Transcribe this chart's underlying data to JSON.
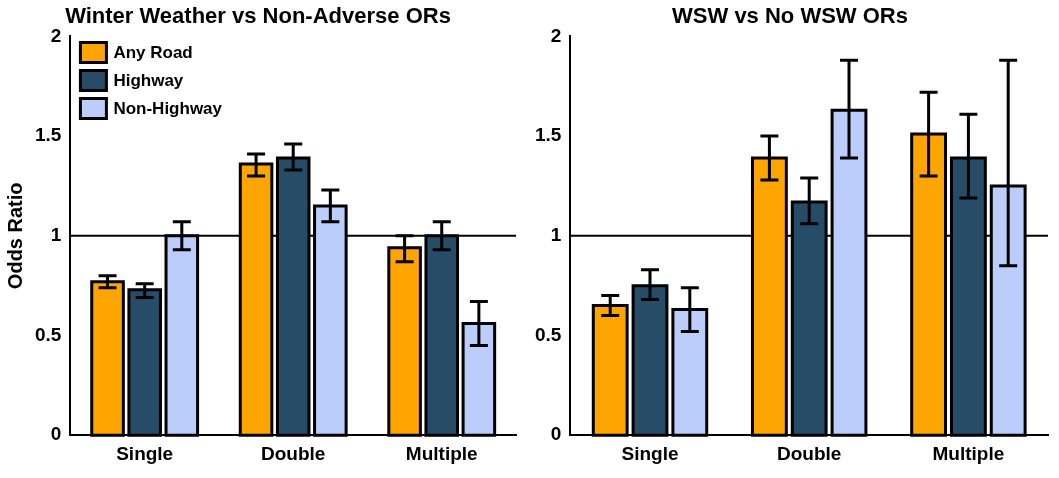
{
  "chart_data": [
    {
      "type": "bar",
      "title": "Winter Weather vs Non-Adverse ORs",
      "ylabel": "Odds Ratio",
      "categories": [
        "Single",
        "Double",
        "Multiple"
      ],
      "ylim": [
        0,
        2
      ],
      "yticks": [
        0,
        0.5,
        1,
        1.5,
        2
      ],
      "grid": false,
      "legend": "top left",
      "ref_lines": [
        {
          "axis": "y",
          "value": 1
        }
      ],
      "series": [
        {
          "name": "Any Road",
          "color": "#ffa500",
          "values": [
            0.77,
            1.36,
            0.94
          ],
          "errors": [
            [
              0.74,
              0.8
            ],
            [
              1.3,
              1.41
            ],
            [
              0.87,
              1.0
            ]
          ]
        },
        {
          "name": "Highway",
          "color": "#264c68",
          "values": [
            0.73,
            1.39,
            1.0
          ],
          "errors": [
            [
              0.69,
              0.76
            ],
            [
              1.33,
              1.46
            ],
            [
              0.93,
              1.07
            ]
          ]
        },
        {
          "name": "Non-Highway",
          "color": "#bbcdfb",
          "values": [
            1.0,
            1.15,
            0.56
          ],
          "errors": [
            [
              0.93,
              1.07
            ],
            [
              1.07,
              1.23
            ],
            [
              0.45,
              0.67
            ]
          ]
        }
      ]
    },
    {
      "type": "bar",
      "title": "WSW vs No WSW ORs",
      "categories": [
        "Single",
        "Double",
        "Multiple"
      ],
      "ylim": [
        0,
        2
      ],
      "yticks": [
        0,
        0.5,
        1,
        1.5,
        2
      ],
      "grid": false,
      "ref_lines": [
        {
          "axis": "y",
          "value": 1
        }
      ],
      "series": [
        {
          "color": "#ffa500",
          "values": [
            0.65,
            1.39,
            1.51
          ],
          "errors": [
            [
              0.6,
              0.7
            ],
            [
              1.28,
              1.5
            ],
            [
              1.3,
              1.72
            ]
          ]
        },
        {
          "color": "#264c68",
          "values": [
            0.75,
            1.17,
            1.39
          ],
          "errors": [
            [
              0.68,
              0.83
            ],
            [
              1.06,
              1.29
            ],
            [
              1.19,
              1.61
            ]
          ]
        },
        {
          "color": "#bbcdfb",
          "values": [
            0.63,
            1.63,
            1.25
          ],
          "errors": [
            [
              0.52,
              0.74
            ],
            [
              1.39,
              1.88
            ],
            [
              0.85,
              1.88
            ]
          ]
        }
      ]
    }
  ]
}
